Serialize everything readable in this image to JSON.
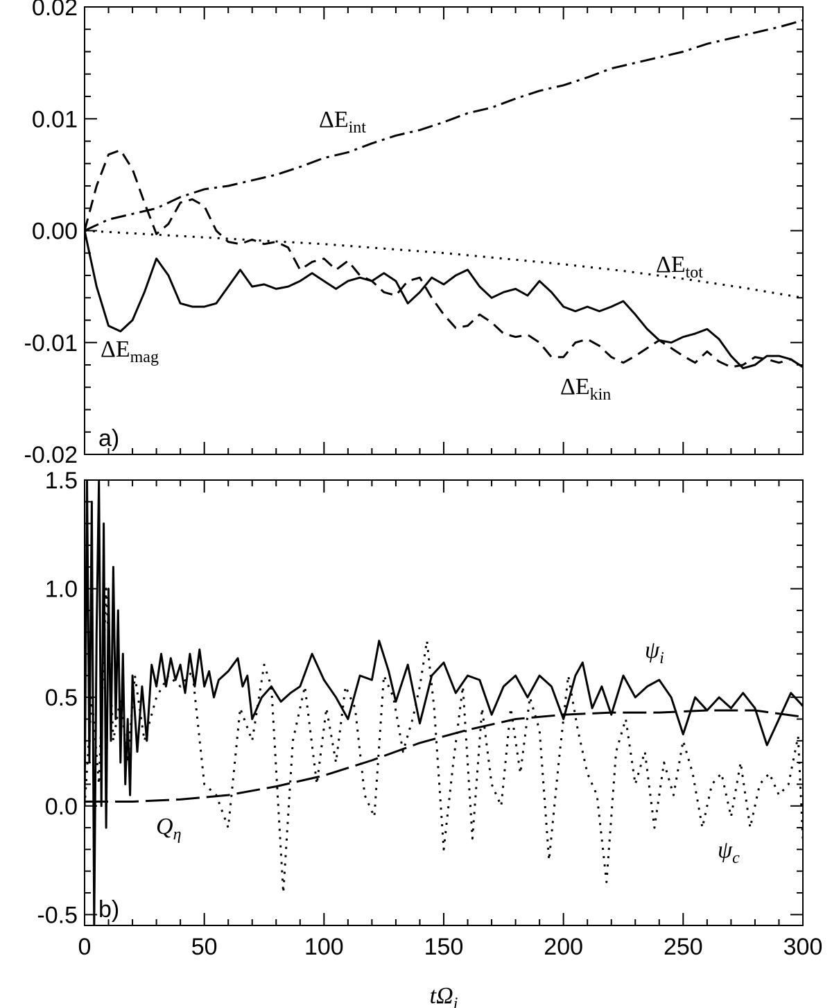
{
  "chart_data": [
    {
      "type": "line",
      "panel_label": "a)",
      "xlim": [
        0,
        300
      ],
      "ylim": [
        -0.02,
        0.02
      ],
      "y_ticks": [
        -0.02,
        -0.01,
        0.0,
        0.01,
        0.02
      ],
      "y_tick_labels": [
        "-0.02",
        "-0.01",
        "0.00",
        "0.01",
        "0.02"
      ],
      "x_ticks": [
        0,
        50,
        100,
        150,
        200,
        250,
        300
      ],
      "x_tick_labels": [
        "",
        "",
        "",
        "",
        "",
        "",
        ""
      ],
      "series": [
        {
          "name": "ΔEint",
          "label_main": "ΔE",
          "label_sub": "int",
          "dash": "dashdot",
          "x": [
            0,
            10,
            20,
            30,
            40,
            50,
            60,
            70,
            80,
            90,
            100,
            110,
            120,
            130,
            140,
            150,
            160,
            170,
            180,
            190,
            200,
            210,
            220,
            230,
            240,
            250,
            260,
            270,
            280,
            290,
            300
          ],
          "y": [
            0.0,
            0.001,
            0.0015,
            0.002,
            0.003,
            0.0037,
            0.004,
            0.0045,
            0.005,
            0.0057,
            0.0065,
            0.007,
            0.0078,
            0.0085,
            0.009,
            0.0097,
            0.0105,
            0.011,
            0.0118,
            0.0125,
            0.013,
            0.0137,
            0.0145,
            0.015,
            0.0155,
            0.016,
            0.0167,
            0.0172,
            0.0177,
            0.0182,
            0.0188
          ]
        },
        {
          "name": "ΔEtot",
          "label_main": "ΔE",
          "label_sub": "tot",
          "dash": "dotted",
          "x": [
            0,
            25,
            50,
            75,
            100,
            125,
            150,
            175,
            200,
            225,
            250,
            275,
            300
          ],
          "y": [
            0.0,
            -0.0003,
            -0.0006,
            -0.0009,
            -0.0012,
            -0.0016,
            -0.002,
            -0.0025,
            -0.003,
            -0.0036,
            -0.0043,
            -0.0051,
            -0.006
          ]
        },
        {
          "name": "ΔEkin",
          "label_main": "ΔE",
          "label_sub": "kin",
          "dash": "dashed",
          "x": [
            0,
            5,
            10,
            15,
            20,
            25,
            30,
            35,
            40,
            45,
            50,
            55,
            60,
            65,
            70,
            75,
            80,
            85,
            90,
            95,
            100,
            105,
            110,
            115,
            120,
            125,
            130,
            135,
            140,
            145,
            150,
            155,
            160,
            165,
            170,
            175,
            180,
            185,
            190,
            195,
            200,
            205,
            210,
            215,
            220,
            225,
            230,
            235,
            240,
            245,
            250,
            255,
            260,
            265,
            270,
            275,
            280,
            285,
            290,
            295,
            300
          ],
          "y": [
            0.0,
            0.004,
            0.0068,
            0.0072,
            0.0055,
            0.0025,
            -0.0003,
            0.0006,
            0.0025,
            0.0028,
            0.0022,
            0.0,
            -0.001,
            -0.0012,
            -0.0008,
            -0.0012,
            -0.001,
            -0.0015,
            -0.0035,
            -0.0028,
            -0.0025,
            -0.0035,
            -0.0027,
            -0.004,
            -0.0045,
            -0.0055,
            -0.0058,
            -0.0045,
            -0.0042,
            -0.006,
            -0.0075,
            -0.0087,
            -0.0085,
            -0.0075,
            -0.0082,
            -0.0092,
            -0.0095,
            -0.0093,
            -0.01,
            -0.0113,
            -0.0113,
            -0.01,
            -0.0097,
            -0.0103,
            -0.0113,
            -0.0118,
            -0.0112,
            -0.0105,
            -0.0098,
            -0.0105,
            -0.0112,
            -0.0118,
            -0.0108,
            -0.0117,
            -0.0122,
            -0.012,
            -0.0113,
            -0.0115,
            -0.0118,
            -0.0115,
            -0.0122
          ]
        },
        {
          "name": "ΔEmag",
          "label_main": "ΔE",
          "label_sub": "mag",
          "dash": "solid",
          "x": [
            0,
            5,
            10,
            15,
            20,
            25,
            30,
            35,
            40,
            45,
            50,
            55,
            60,
            65,
            70,
            75,
            80,
            85,
            90,
            95,
            100,
            105,
            110,
            115,
            120,
            125,
            130,
            135,
            140,
            145,
            150,
            155,
            160,
            165,
            170,
            175,
            180,
            185,
            190,
            195,
            200,
            205,
            210,
            215,
            220,
            225,
            230,
            235,
            240,
            245,
            250,
            255,
            260,
            265,
            270,
            275,
            280,
            285,
            290,
            295,
            300
          ],
          "y": [
            0.0,
            -0.005,
            -0.0085,
            -0.009,
            -0.008,
            -0.0055,
            -0.0025,
            -0.004,
            -0.0065,
            -0.0068,
            -0.0068,
            -0.0065,
            -0.005,
            -0.0035,
            -0.005,
            -0.0048,
            -0.0052,
            -0.005,
            -0.0045,
            -0.0038,
            -0.0045,
            -0.0052,
            -0.0045,
            -0.0042,
            -0.0045,
            -0.0038,
            -0.0045,
            -0.0065,
            -0.0055,
            -0.0042,
            -0.0048,
            -0.004,
            -0.0035,
            -0.005,
            -0.006,
            -0.0055,
            -0.0052,
            -0.0058,
            -0.0045,
            -0.0055,
            -0.0068,
            -0.0072,
            -0.0068,
            -0.0072,
            -0.0068,
            -0.0063,
            -0.0075,
            -0.0088,
            -0.0098,
            -0.01,
            -0.0095,
            -0.0092,
            -0.0088,
            -0.0097,
            -0.0112,
            -0.0123,
            -0.012,
            -0.0112,
            -0.0112,
            -0.0115,
            -0.0122
          ]
        }
      ]
    },
    {
      "type": "line",
      "panel_label": "b)",
      "xlim": [
        0,
        300
      ],
      "ylim": [
        -0.55,
        1.5
      ],
      "y_ticks": [
        -0.5,
        0.0,
        0.5,
        1.0,
        1.5
      ],
      "y_tick_labels": [
        "-0.5",
        "0.0",
        "0.5",
        "1.0",
        "1.5"
      ],
      "x_ticks": [
        0,
        50,
        100,
        150,
        200,
        250,
        300
      ],
      "x_tick_labels": [
        "0",
        "50",
        "100",
        "150",
        "200",
        "250",
        "300"
      ],
      "xlabel_main": "tΩ",
      "xlabel_sub": "i",
      "series": [
        {
          "name": "ψi",
          "label_main": "ψ",
          "label_sub": "i",
          "dash": "solid",
          "x": [
            0,
            1,
            2,
            3,
            4,
            5,
            6,
            7,
            8,
            9,
            10,
            11,
            12,
            13,
            14,
            15,
            16,
            17,
            18,
            19,
            20,
            22,
            24,
            26,
            28,
            30,
            32,
            34,
            36,
            38,
            40,
            42,
            44,
            46,
            48,
            50,
            52,
            54,
            56,
            60,
            64,
            66,
            68,
            70,
            74,
            78,
            82,
            86,
            90,
            95,
            100,
            105,
            110,
            115,
            120,
            123,
            127,
            130,
            135,
            140,
            145,
            150,
            155,
            160,
            165,
            170,
            175,
            180,
            185,
            190,
            195,
            200,
            205,
            208,
            212,
            216,
            220,
            225,
            230,
            235,
            240,
            245,
            250,
            255,
            260,
            265,
            270,
            275,
            280,
            285,
            290,
            295,
            300
          ],
          "y": [
            0.0,
            1.5,
            0.2,
            1.4,
            -0.55,
            0.8,
            1.5,
            0.0,
            1.3,
            -0.1,
            1.0,
            0.3,
            1.1,
            0.4,
            0.9,
            0.2,
            0.7,
            0.1,
            0.4,
            0.05,
            0.6,
            0.25,
            0.55,
            0.3,
            0.65,
            0.55,
            0.7,
            0.55,
            0.68,
            0.58,
            0.65,
            0.52,
            0.7,
            0.55,
            0.72,
            0.55,
            0.62,
            0.5,
            0.58,
            0.62,
            0.68,
            0.55,
            0.6,
            0.4,
            0.5,
            0.55,
            0.48,
            0.52,
            0.55,
            0.7,
            0.58,
            0.5,
            0.4,
            0.6,
            0.58,
            0.76,
            0.62,
            0.48,
            0.65,
            0.38,
            0.6,
            0.66,
            0.52,
            0.6,
            0.58,
            0.42,
            0.55,
            0.6,
            0.5,
            0.6,
            0.55,
            0.4,
            0.6,
            0.66,
            0.45,
            0.55,
            0.42,
            0.6,
            0.5,
            0.55,
            0.58,
            0.5,
            0.33,
            0.5,
            0.44,
            0.5,
            0.45,
            0.52,
            0.45,
            0.28,
            0.4,
            0.52,
            0.46
          ]
        },
        {
          "name": "ψc",
          "label_main": "ψ",
          "label_sub": "c",
          "dash": "dotted",
          "x": [
            0,
            3,
            6,
            9,
            12,
            15,
            18,
            21,
            25,
            30,
            35,
            40,
            45,
            50,
            55,
            60,
            65,
            70,
            75,
            78,
            83,
            87,
            92,
            97,
            101,
            105,
            109,
            113,
            117,
            121,
            125,
            129,
            133,
            137,
            140,
            143,
            146,
            150,
            154,
            158,
            162,
            166,
            170,
            174,
            178,
            182,
            186,
            190,
            194,
            198,
            202,
            206,
            210,
            214,
            218,
            222,
            226,
            230,
            234,
            238,
            242,
            246,
            250,
            254,
            258,
            262,
            266,
            270,
            274,
            278,
            282,
            286,
            290,
            294,
            298,
            300
          ],
          "y": [
            0.0,
            0.5,
            0.1,
            1.0,
            0.3,
            0.5,
            0.2,
            0.6,
            0.3,
            0.5,
            0.6,
            0.55,
            0.62,
            0.1,
            0.05,
            -0.1,
            0.45,
            0.3,
            0.65,
            0.55,
            -0.4,
            0.3,
            0.55,
            0.1,
            0.45,
            0.2,
            0.55,
            0.45,
            0.05,
            -0.05,
            0.6,
            0.5,
            0.25,
            0.4,
            0.55,
            0.76,
            0.45,
            -0.2,
            0.2,
            0.55,
            -0.15,
            0.45,
            0.1,
            0.0,
            0.45,
            0.15,
            0.5,
            0.35,
            -0.25,
            0.2,
            0.6,
            0.35,
            0.15,
            0.05,
            -0.35,
            0.25,
            0.4,
            0.1,
            0.25,
            -0.1,
            0.2,
            0.05,
            0.3,
            0.15,
            -0.1,
            0.1,
            0.15,
            -0.05,
            0.2,
            -0.1,
            0.1,
            0.15,
            0.05,
            0.1,
            0.32,
            -0.15
          ]
        },
        {
          "name": "Qη",
          "label_main": "Q",
          "label_sub": "η",
          "dash": "longdash",
          "x": [
            0,
            20,
            40,
            60,
            80,
            100,
            120,
            140,
            160,
            180,
            200,
            220,
            240,
            260,
            280,
            300
          ],
          "y": [
            0.02,
            0.02,
            0.03,
            0.05,
            0.09,
            0.14,
            0.21,
            0.29,
            0.35,
            0.4,
            0.42,
            0.43,
            0.43,
            0.44,
            0.44,
            0.41
          ]
        }
      ]
    }
  ]
}
